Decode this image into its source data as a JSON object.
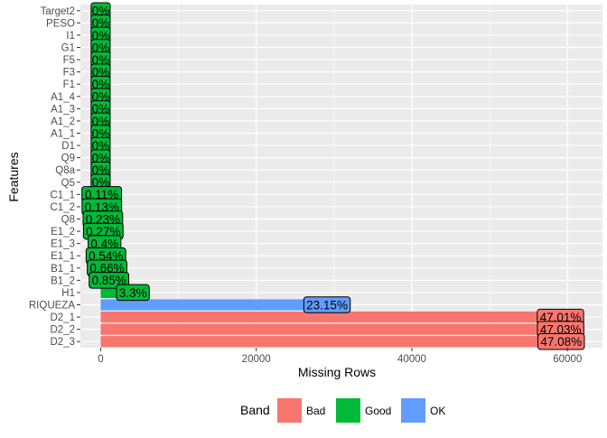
{
  "colors": {
    "panel": "#EBEBEB",
    "grid_major": "#FFFFFF",
    "Bad": "#F8766D",
    "Good": "#00BA38",
    "OK": "#619CFF",
    "axis_text": "#4D4D4D",
    "title_text": "#000000"
  },
  "chart_data": {
    "type": "bar",
    "orientation": "horizontal",
    "xlabel": "Missing Rows",
    "ylabel": "Features",
    "xlim": [
      -2600,
      64500
    ],
    "x_ticks": [
      0,
      20000,
      40000,
      60000
    ],
    "x_tick_labels": [
      "0",
      "20000",
      "40000",
      "60000"
    ],
    "grid": true,
    "legend": {
      "position": "bottom",
      "title": "Band",
      "entries": [
        "Bad",
        "Good",
        "OK"
      ]
    },
    "bars": [
      {
        "feature": "Target2",
        "value": 0,
        "label": "0%",
        "band": "Good"
      },
      {
        "feature": "PESO",
        "value": 0,
        "label": "0%",
        "band": "Good"
      },
      {
        "feature": "I1",
        "value": 0,
        "label": "0%",
        "band": "Good"
      },
      {
        "feature": "G1",
        "value": 0,
        "label": "0%",
        "band": "Good"
      },
      {
        "feature": "F5",
        "value": 0,
        "label": "0%",
        "band": "Good"
      },
      {
        "feature": "F3",
        "value": 0,
        "label": "0%",
        "band": "Good"
      },
      {
        "feature": "F1",
        "value": 0,
        "label": "0%",
        "band": "Good"
      },
      {
        "feature": "A1_4",
        "value": 0,
        "label": "0%",
        "band": "Good"
      },
      {
        "feature": "A1_3",
        "value": 0,
        "label": "0%",
        "band": "Good"
      },
      {
        "feature": "A1_2",
        "value": 0,
        "label": "0%",
        "band": "Good"
      },
      {
        "feature": "A1_1",
        "value": 0,
        "label": "0%",
        "band": "Good"
      },
      {
        "feature": "D1",
        "value": 0,
        "label": "0%",
        "band": "Good"
      },
      {
        "feature": "Q9",
        "value": 0,
        "label": "0%",
        "band": "Good"
      },
      {
        "feature": "Q8a",
        "value": 0,
        "label": "0%",
        "band": "Good"
      },
      {
        "feature": "Q5",
        "value": 0,
        "label": "0%",
        "band": "Good"
      },
      {
        "feature": "C1_1",
        "value": 140,
        "label": "0.11%",
        "band": "Good"
      },
      {
        "feature": "C1_2",
        "value": 160,
        "label": "0.13%",
        "band": "Good"
      },
      {
        "feature": "Q8",
        "value": 290,
        "label": "0.23%",
        "band": "Good"
      },
      {
        "feature": "E1_2",
        "value": 340,
        "label": "0.27%",
        "band": "Good"
      },
      {
        "feature": "E1_3",
        "value": 500,
        "label": "0.4%",
        "band": "Good"
      },
      {
        "feature": "E1_1",
        "value": 680,
        "label": "0.54%",
        "band": "Good"
      },
      {
        "feature": "B1_1",
        "value": 830,
        "label": "0.66%",
        "band": "Good"
      },
      {
        "feature": "B1_2",
        "value": 1070,
        "label": "0.85%",
        "band": "Good"
      },
      {
        "feature": "H1",
        "value": 4150,
        "label": "3.3%",
        "band": "Good"
      },
      {
        "feature": "RIQUEZA",
        "value": 29100,
        "label": "23.15%",
        "band": "OK"
      },
      {
        "feature": "D2_1",
        "value": 59100,
        "label": "47.01%",
        "band": "Bad"
      },
      {
        "feature": "D2_2",
        "value": 59120,
        "label": "47.03%",
        "band": "Bad"
      },
      {
        "feature": "D2_3",
        "value": 59190,
        "label": "47.08%",
        "band": "Bad"
      }
    ]
  }
}
